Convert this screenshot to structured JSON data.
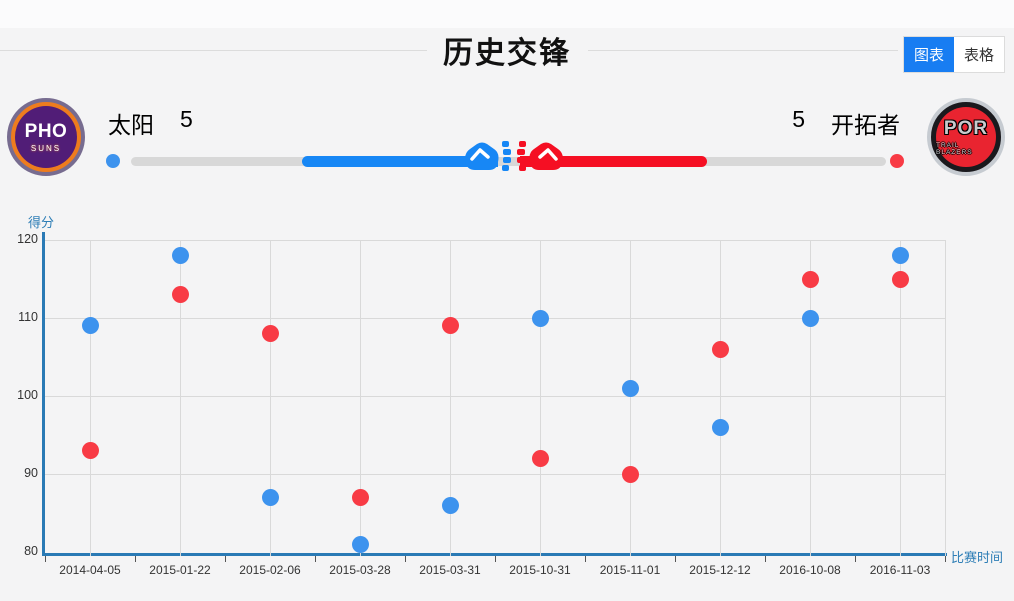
{
  "header": {
    "title": "历史交锋",
    "tabs": [
      {
        "label": "图表",
        "active": true
      },
      {
        "label": "表格",
        "active": false
      }
    ]
  },
  "matchup": {
    "home": {
      "name": "太阳",
      "wins": "5",
      "logo_main": "PHO",
      "logo_sub": "SUNS"
    },
    "away": {
      "name": "开拓者",
      "wins": "5",
      "logo_main": "POR",
      "logo_sub": "TRAIL BLAZERS"
    }
  },
  "colors": {
    "home_dot": "#3d93ee",
    "away_dot": "#f83b45",
    "home_bar": "#1787f5",
    "away_bar": "#f50f23",
    "axis": "#2a7ab5",
    "accent": "#187df2"
  },
  "chart_data": {
    "type": "scatter",
    "title": "历史交锋",
    "xlabel": "比赛时间",
    "ylabel": "得分",
    "ylim": [
      80,
      120
    ],
    "yticks": [
      80,
      90,
      100,
      110,
      120
    ],
    "grid": true,
    "legend_position": "none",
    "categories": [
      "2014-04-05",
      "2015-01-22",
      "2015-02-06",
      "2015-03-28",
      "2015-03-31",
      "2015-10-31",
      "2015-11-01",
      "2015-12-12",
      "2016-10-08",
      "2016-11-03"
    ],
    "series": [
      {
        "name": "太阳",
        "color_key": "home_dot",
        "values": [
          109,
          118,
          87,
          81,
          86,
          110,
          101,
          96,
          110,
          118
        ]
      },
      {
        "name": "开拓者",
        "color_key": "away_dot",
        "values": [
          93,
          113,
          108,
          87,
          109,
          92,
          90,
          106,
          115,
          115
        ]
      }
    ]
  }
}
